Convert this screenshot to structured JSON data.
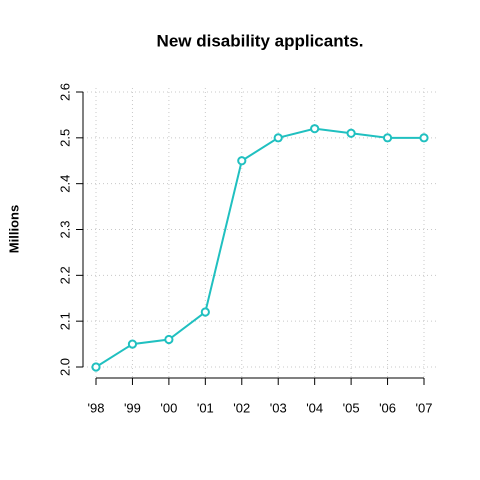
{
  "chart_data": {
    "type": "line",
    "title": "New disability applicants.",
    "y_label": "Millions",
    "categories": [
      "'98",
      "'99",
      "'00",
      "'01",
      "'02",
      "'03",
      "'04",
      "'05",
      "'06",
      "'07"
    ],
    "values": [
      2.0,
      2.05,
      2.06,
      2.12,
      2.45,
      2.5,
      2.52,
      2.51,
      2.5,
      2.5
    ],
    "color": "#20c0c0",
    "ylim": [
      2.0,
      2.6
    ],
    "yticks": [
      {
        "value": 2.0,
        "label": "2.0"
      },
      {
        "value": 2.1,
        "label": "2.1"
      },
      {
        "value": 2.2,
        "label": "2.2"
      },
      {
        "value": 2.3,
        "label": "2.3"
      },
      {
        "value": 2.4,
        "label": "2.4"
      },
      {
        "value": 2.5,
        "label": "2.5"
      },
      {
        "value": 2.6,
        "label": "2.6"
      }
    ],
    "grid": true
  }
}
